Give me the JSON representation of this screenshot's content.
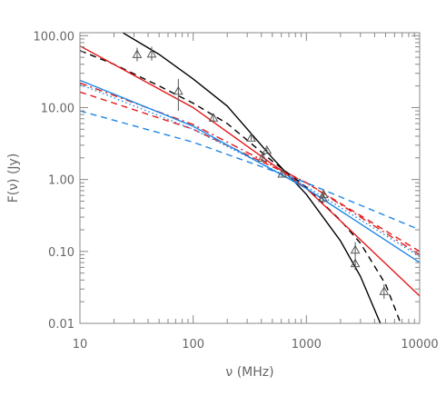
{
  "chart_data": {
    "type": "line",
    "title": "",
    "xlabel": "ν (MHz)",
    "ylabel": "F(ν) (Jy)",
    "x_scale": "log",
    "y_scale": "log",
    "xlim": [
      10,
      10000
    ],
    "ylim": [
      0.01,
      110
    ],
    "grid": false,
    "x_ticks": [
      {
        "value": 10,
        "label": "10"
      },
      {
        "value": 100,
        "label": "100"
      },
      {
        "value": 1000,
        "label": "1000"
      },
      {
        "value": 10000,
        "label": "10000"
      }
    ],
    "y_ticks": [
      {
        "value": 0.01,
        "label": "0.01"
      },
      {
        "value": 0.1,
        "label": "0.10"
      },
      {
        "value": 1,
        "label": "1.00"
      },
      {
        "value": 10,
        "label": "10.00"
      },
      {
        "value": 100,
        "label": "100.00"
      }
    ],
    "series": [
      {
        "kind": "line",
        "color": "#000000",
        "dash": "solid",
        "x": [
          10,
          20,
          50,
          100,
          200,
          500,
          1000,
          2000,
          3000,
          4500
        ],
        "y": [
          210,
          130,
          55,
          25,
          10.5,
          2.0,
          0.62,
          0.14,
          0.045,
          0.01
        ]
      },
      {
        "kind": "line",
        "color": "#000000",
        "dash": "dashed",
        "x": [
          10,
          20,
          50,
          100,
          200,
          500,
          1000,
          2000,
          3000,
          5000,
          6800
        ],
        "y": [
          62,
          40,
          20,
          11.5,
          6.0,
          1.8,
          0.78,
          0.27,
          0.13,
          0.035,
          0.01
        ]
      },
      {
        "kind": "line",
        "color": "#e31a1c",
        "dash": "solid",
        "x": [
          10,
          100,
          1000,
          10000
        ],
        "y": [
          72,
          10,
          0.75,
          0.024
        ]
      },
      {
        "kind": "line",
        "color": "#e31a1c",
        "dash": "dashed",
        "x": [
          10,
          100,
          1000,
          10000
        ],
        "y": [
          16.5,
          5.0,
          0.9,
          0.1
        ]
      },
      {
        "kind": "line",
        "color": "#e31a1c",
        "dash": "dashdot",
        "x": [
          10,
          100,
          1000,
          10000
        ],
        "y": [
          22,
          5.8,
          0.9,
          0.09
        ]
      },
      {
        "kind": "line",
        "color": "#1e88e5",
        "dash": "solid",
        "x": [
          10,
          100,
          1000,
          10000
        ],
        "y": [
          24,
          5.5,
          0.75,
          0.07
        ]
      },
      {
        "kind": "line",
        "color": "#1e88e5",
        "dash": "dotted",
        "x": [
          10,
          100,
          1000,
          10000
        ],
        "y": [
          21,
          5.0,
          0.8,
          0.085
        ]
      },
      {
        "kind": "line",
        "color": "#1e88e5",
        "dash": "dashed",
        "x": [
          10,
          100,
          1000,
          10000
        ],
        "y": [
          9.0,
          3.3,
          0.9,
          0.2
        ]
      }
    ],
    "data_points": {
      "marker": "triangle-open",
      "color": "#555555",
      "points": [
        {
          "x": 32,
          "y": 55,
          "err_lo": 44,
          "err_hi": 68
        },
        {
          "x": 43,
          "y": 56,
          "err_lo": 45,
          "err_hi": 70
        },
        {
          "x": 74,
          "y": 17,
          "err_lo": 9,
          "err_hi": 25
        },
        {
          "x": 151,
          "y": 7.2,
          "err_lo": 6.4,
          "err_hi": 8.0
        },
        {
          "x": 325,
          "y": 3.8,
          "err_lo": 3.5,
          "err_hi": 4.2
        },
        {
          "x": 408,
          "y": 2.0,
          "err_lo": 1.8,
          "err_hi": 2.2
        },
        {
          "x": 448,
          "y": 2.55,
          "err_lo": 2.35,
          "err_hi": 2.75
        },
        {
          "x": 611,
          "y": 1.2,
          "err_lo": 1.1,
          "err_hi": 1.3
        },
        {
          "x": 1400,
          "y": 0.55,
          "err_lo": 0.5,
          "err_hi": 0.6
        },
        {
          "x": 1420,
          "y": 0.62,
          "err_lo": 0.57,
          "err_hi": 0.67
        },
        {
          "x": 2700,
          "y": 0.105,
          "err_lo": 0.085,
          "err_hi": 0.135
        },
        {
          "x": 2700,
          "y": 0.068,
          "err_lo": 0.055,
          "err_hi": 0.085
        },
        {
          "x": 4850,
          "y": 0.028,
          "err_lo": 0.022,
          "err_hi": 0.035
        }
      ]
    }
  }
}
